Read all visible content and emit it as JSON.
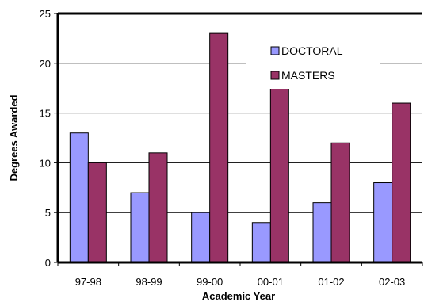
{
  "chart_data": {
    "type": "bar",
    "title": "",
    "xlabel": "Academic Year",
    "ylabel": "Degrees Awarded",
    "categories": [
      "97-98",
      "98-99",
      "99-00",
      "00-01",
      "01-02",
      "02-03"
    ],
    "series": [
      {
        "name": "DOCTORAL",
        "color": "#9999ff",
        "values": [
          13,
          7,
          5,
          4,
          6,
          8
        ]
      },
      {
        "name": "MASTERS",
        "color": "#993366",
        "values": [
          10,
          11,
          23,
          18,
          12,
          16
        ]
      }
    ],
    "ylim": [
      0,
      25
    ],
    "yticks": [
      0,
      5,
      10,
      15,
      20,
      25
    ],
    "grid": true,
    "legend_position": "top-right"
  }
}
